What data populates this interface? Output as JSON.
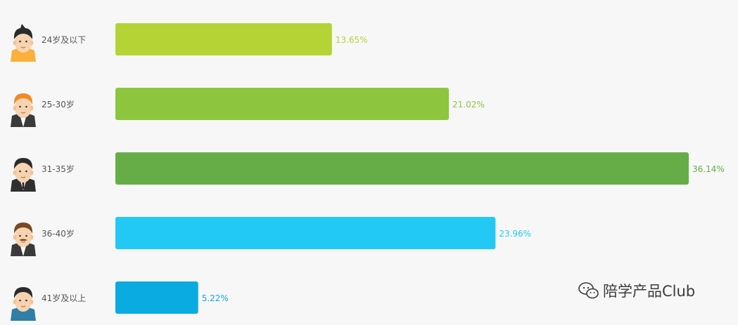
{
  "chart_data": {
    "type": "bar",
    "orientation": "horizontal",
    "categories": [
      "24岁及以下",
      "25-30岁",
      "31-35岁",
      "36-40岁",
      "41岁及以上"
    ],
    "values": [
      13.65,
      21.02,
      36.14,
      23.96,
      5.22
    ],
    "value_labels": [
      "13.65%",
      "21.02%",
      "36.14%",
      "23.96%",
      "5.22%"
    ],
    "unit": "%",
    "xlim": [
      0,
      36.14
    ],
    "grid": false,
    "legend": "none",
    "colors": [
      "#b5d334",
      "#8dc53f",
      "#66ad48",
      "#22c9f4",
      "#0aabe0"
    ],
    "icons": [
      "boy-avatar-icon",
      "young-man-avatar-icon",
      "businessman-avatar-icon",
      "mustache-man-avatar-icon",
      "man-avatar-icon"
    ]
  },
  "watermark": {
    "text": "陪学产品Club",
    "icon": "wechat-icon"
  }
}
